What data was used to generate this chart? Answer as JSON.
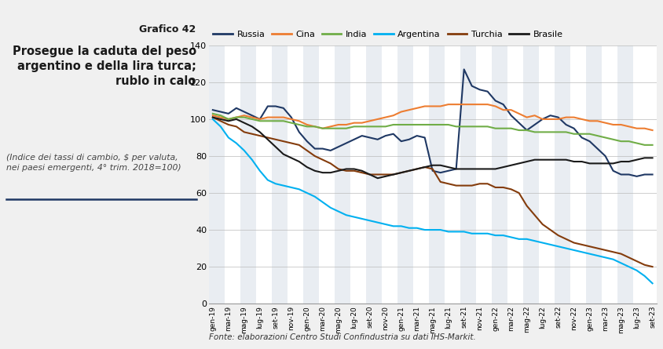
{
  "title_line1": "Grafico 42",
  "title_line2": "Prosegue la caduta del peso\nargentino e della lira turca;\nrublo in calo",
  "subtitle": "(Indice dei tassi di cambio, $ per valuta,\nnei paesi emergenti, 4° trim. 2018=100)",
  "fonte": "Fonte: elaborazioni Centro Studi Confindustria su dati IHS-Markit.",
  "ylim": [
    0,
    140
  ],
  "yticks": [
    0,
    20,
    40,
    60,
    80,
    100,
    120,
    140
  ],
  "fig_bg": "#f0f0f0",
  "plot_bg": "#ffffff",
  "series": {
    "Russia": {
      "color": "#1f3864",
      "data": [
        105,
        104,
        103,
        106,
        104,
        102,
        100,
        107,
        107,
        106,
        101,
        93,
        88,
        84,
        84,
        83,
        85,
        87,
        89,
        91,
        90,
        89,
        91,
        92,
        88,
        89,
        91,
        90,
        72,
        71,
        72,
        73,
        127,
        118,
        116,
        115,
        110,
        108,
        102,
        98,
        94,
        97,
        100,
        102,
        101,
        97,
        95,
        90,
        88,
        84,
        80,
        72,
        70,
        70,
        69,
        70,
        70
      ]
    },
    "Cina": {
      "color": "#ed7d31",
      "data": [
        102,
        101,
        100,
        101,
        102,
        101,
        100,
        101,
        101,
        101,
        100,
        99,
        97,
        96,
        95,
        96,
        97,
        97,
        98,
        98,
        99,
        100,
        101,
        102,
        104,
        105,
        106,
        107,
        107,
        107,
        108,
        108,
        108,
        108,
        108,
        108,
        107,
        105,
        105,
        103,
        101,
        102,
        100,
        100,
        100,
        101,
        101,
        100,
        99,
        99,
        98,
        97,
        97,
        96,
        95,
        95,
        94
      ]
    },
    "India": {
      "color": "#70ad47",
      "data": [
        103,
        102,
        100,
        101,
        101,
        100,
        99,
        99,
        99,
        99,
        98,
        97,
        96,
        96,
        95,
        95,
        95,
        95,
        96,
        96,
        96,
        96,
        96,
        97,
        97,
        97,
        97,
        97,
        97,
        97,
        97,
        96,
        96,
        96,
        96,
        96,
        95,
        95,
        95,
        94,
        94,
        93,
        93,
        93,
        93,
        93,
        92,
        92,
        92,
        91,
        90,
        89,
        88,
        88,
        87,
        86,
        86
      ]
    },
    "Argentina": {
      "color": "#00b0f0",
      "data": [
        100,
        96,
        90,
        87,
        83,
        78,
        72,
        67,
        65,
        64,
        63,
        62,
        60,
        58,
        55,
        52,
        50,
        48,
        47,
        46,
        45,
        44,
        43,
        42,
        42,
        41,
        41,
        40,
        40,
        40,
        39,
        39,
        39,
        38,
        38,
        38,
        37,
        37,
        36,
        35,
        35,
        34,
        33,
        32,
        31,
        30,
        29,
        28,
        27,
        26,
        25,
        24,
        22,
        20,
        18,
        15,
        11
      ]
    },
    "Turchia": {
      "color": "#843c0c",
      "data": [
        101,
        99,
        97,
        96,
        93,
        92,
        91,
        90,
        89,
        88,
        87,
        86,
        83,
        80,
        78,
        76,
        73,
        72,
        72,
        71,
        70,
        70,
        70,
        70,
        71,
        72,
        73,
        74,
        73,
        66,
        65,
        64,
        64,
        64,
        65,
        65,
        63,
        63,
        62,
        60,
        53,
        48,
        43,
        40,
        37,
        35,
        33,
        32,
        31,
        30,
        29,
        28,
        27,
        25,
        23,
        21,
        20
      ]
    },
    "Brasile": {
      "color": "#1a1a1a",
      "data": [
        101,
        100,
        99,
        100,
        98,
        96,
        93,
        89,
        85,
        81,
        79,
        77,
        74,
        72,
        71,
        71,
        72,
        73,
        73,
        72,
        70,
        68,
        69,
        70,
        71,
        72,
        73,
        74,
        75,
        75,
        74,
        73,
        73,
        73,
        73,
        73,
        73,
        74,
        75,
        76,
        77,
        78,
        78,
        78,
        78,
        78,
        77,
        77,
        76,
        76,
        76,
        76,
        77,
        77,
        78,
        79,
        79
      ]
    }
  },
  "x_labels": [
    "gen-19",
    "mar-19",
    "mag-19",
    "lug-19",
    "set-19",
    "nov-19",
    "gen-20",
    "mar-20",
    "mag-20",
    "lug-20",
    "set-20",
    "nov-20",
    "gen-21",
    "mar-21",
    "mag-21",
    "lug-21",
    "set-21",
    "nov-21",
    "gen-22",
    "mar-22",
    "mag-22",
    "lug-22",
    "set-22",
    "nov-22",
    "gen-23",
    "mar-23",
    "mag-23",
    "lug-23",
    "set-23"
  ],
  "stripe_color": "#d0d8e4",
  "stripe_alpha": 0.45,
  "legend_order": [
    "Russia",
    "Cina",
    "India",
    "Argentina",
    "Turchia",
    "Brasile"
  ],
  "separator_color": "#1f3864"
}
